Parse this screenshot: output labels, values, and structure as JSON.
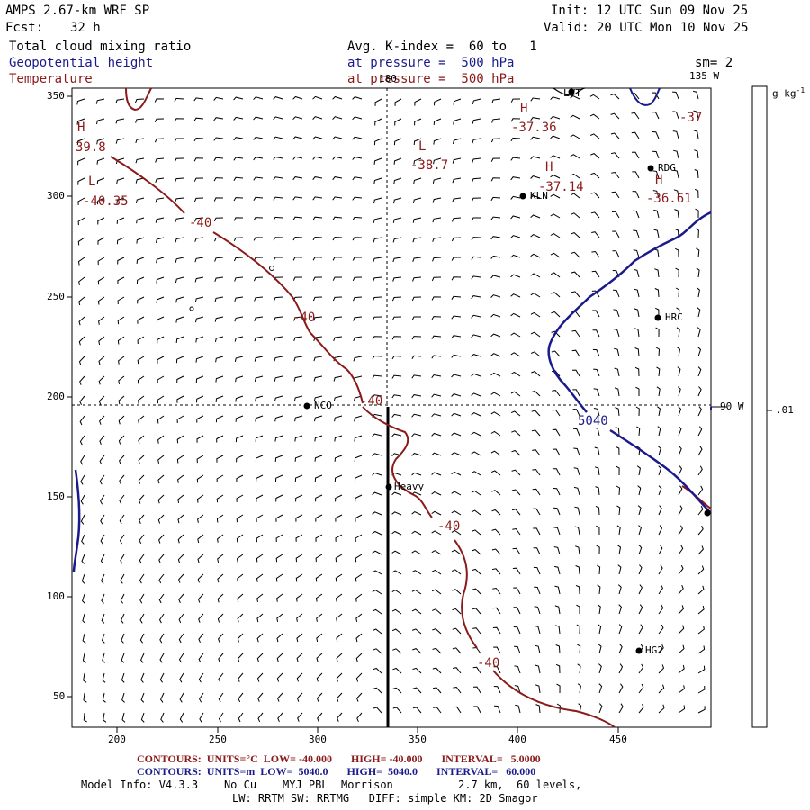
{
  "header": {
    "model": "AMPS 2.67-km WRF SP",
    "forecast_label": "Fcst:",
    "forecast_hours": "32 h",
    "init": "Init: 12 UTC Sun 09 Nov 25",
    "valid": "Valid: 20 UTC Mon 10 Nov 25",
    "field1": "Total cloud mixing ratio",
    "field2": "Geopotential height",
    "field3": "Temperature",
    "avg_line": "Avg. K-index =  60 to   1",
    "pressure_line1": "at pressure =  500 hPa",
    "pressure_line2": "at pressure =  500 hPa",
    "smoothing": "sm= 2"
  },
  "map": {
    "x_ticks": [
      "200",
      "250",
      "300",
      "350",
      "400",
      "450"
    ],
    "y_ticks": [
      "350",
      "300",
      "250",
      "200",
      "150",
      "100",
      "50"
    ],
    "meridian_top": "180",
    "meridian_right_top": "135 W",
    "meridian_right_mid": "90 W",
    "stations": [
      {
        "name": "LVT"
      },
      {
        "name": "RDG"
      },
      {
        "name": "KLN"
      },
      {
        "name": "HRC"
      },
      {
        "name": "NCO"
      },
      {
        "name": "Heavy"
      },
      {
        "name": "HG2"
      },
      {
        "name": ""
      }
    ],
    "pressure_centers": [
      {
        "type": "H",
        "value": "39.8"
      },
      {
        "type": "L",
        "value": "-40.35"
      },
      {
        "type": "H",
        "value": "-37.36"
      },
      {
        "type": "L",
        "value": "-38.7"
      },
      {
        "type": "H",
        "value": "-37.14"
      },
      {
        "type": "H",
        "value": "-36.61"
      },
      {
        "type": "",
        "value": "-37"
      }
    ],
    "temp_contour_labels": [
      "-40",
      "-40",
      "-40",
      "-40",
      "-40"
    ],
    "height_contour_label": "5040"
  },
  "colorbar": {
    "unit": "g kg",
    "unit_exp": "-1",
    "tick": ".01"
  },
  "footer": {
    "temp_contours": "CONTOURS:  UNITS=°C  LOW= -40.000       HIGH= -40.000       INTERVAL=   5.0000",
    "height_contours": "CONTOURS:  UNITS=m  LOW=  5040.0       HIGH=  5040.0       INTERVAL=   60.000",
    "model_info": "Model Info: V4.3.3    No Cu    MYJ PBL  Morrison          2.7 km,  60 levels,",
    "physics": "LW: RRTM SW: RRTMG   DIFF: simple KM: 2D Smagor"
  },
  "colors": {
    "temperature": "#8b1a1a",
    "height": "#1a1a8c"
  }
}
